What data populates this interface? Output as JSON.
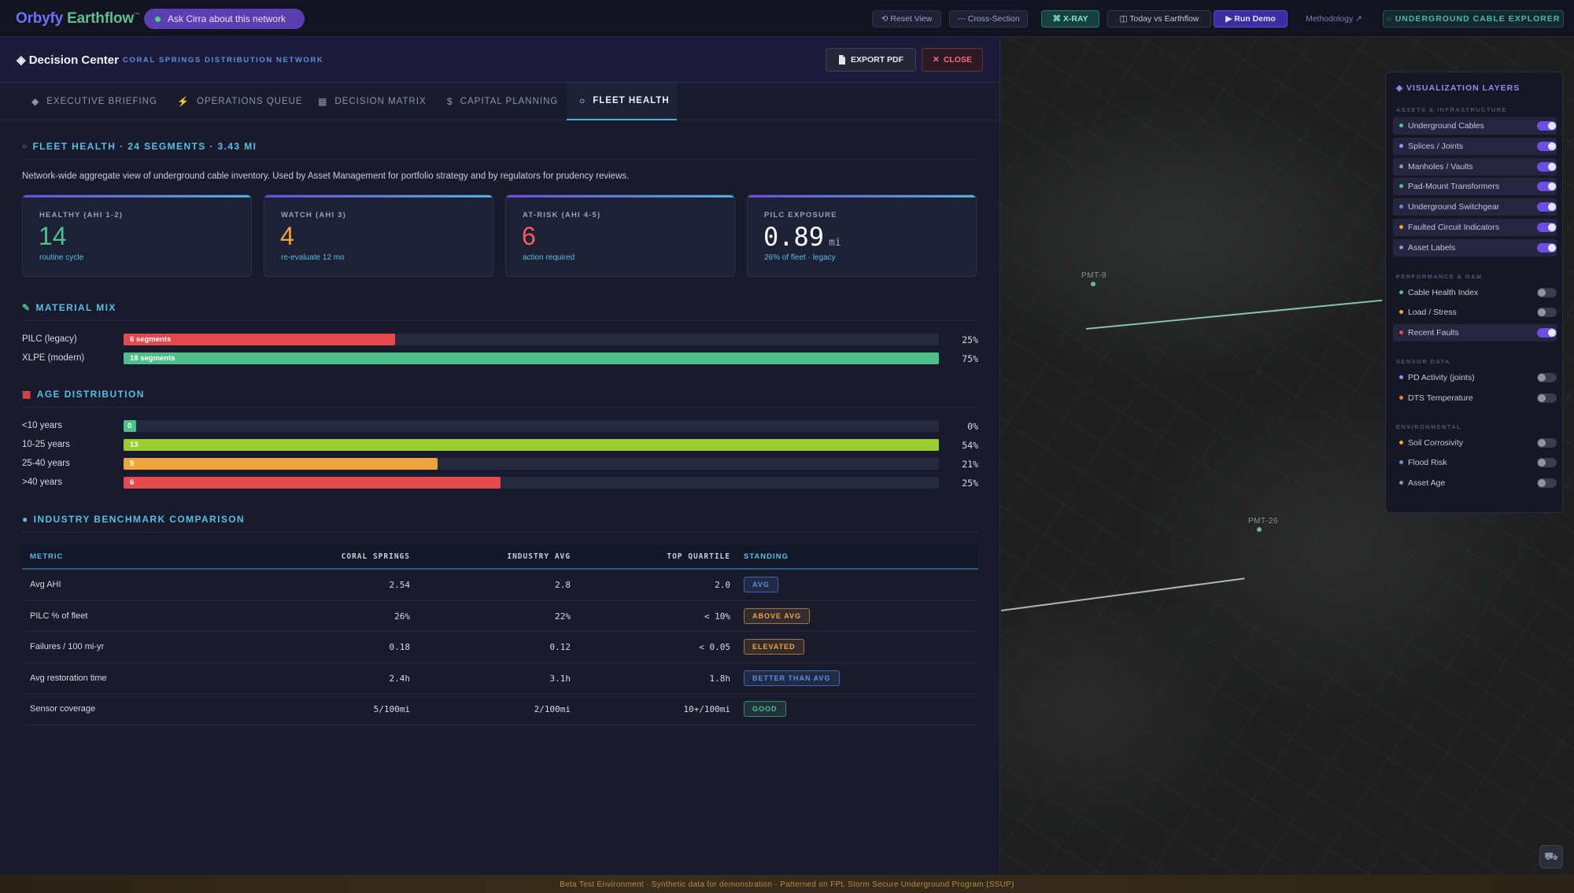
{
  "app": {
    "brand_part1": "Orbyfy",
    "brand_part2": "Earthflow",
    "brand_tm": "™",
    "ask_label": "Ask Cirra about this network"
  },
  "toolbar": {
    "reset_view": "⟲ Reset View",
    "cross_section": "⋯ Cross-Section",
    "xray": "⌘ X-RAY",
    "today_vs": "◫ Today vs Earthflow",
    "run_demo": "▶ Run Demo",
    "methodology": "Methodology ↗",
    "explorer": "◌ UNDERGROUND CABLE EXPLORER"
  },
  "panel": {
    "title_icon": "◈",
    "title": "Decision Center",
    "subtitle": "CORAL SPRINGS DISTRIBUTION NETWORK",
    "export_label": "EXPORT PDF",
    "close_label": "CLOSE"
  },
  "tabs": [
    {
      "label": "EXECUTIVE BRIEFING",
      "icon": "◆"
    },
    {
      "label": "OPERATIONS QUEUE",
      "icon": "⚡"
    },
    {
      "label": "DECISION MATRIX",
      "icon": "▦"
    },
    {
      "label": "CAPITAL PLANNING",
      "icon": "$"
    },
    {
      "label": "FLEET HEALTH",
      "icon": "○"
    }
  ],
  "fleet": {
    "section_title": "FLEET HEALTH · 24 SEGMENTS · 3.43 MI",
    "intro": "Network-wide aggregate view of underground cable inventory. Used by Asset Management for portfolio strategy and by regulators for prudency reviews.",
    "kpis": [
      {
        "label": "HEALTHY (AHI 1-2)",
        "value": "14",
        "unit": "",
        "sub": "routine cycle",
        "color": "#4fc08a"
      },
      {
        "label": "WATCH (AHI 3)",
        "value": "4",
        "unit": "",
        "sub": "re-evaluate 12 mo",
        "color": "#f0a53a"
      },
      {
        "label": "AT-RISK (AHI 4-5)",
        "value": "6",
        "unit": "",
        "sub": "action required",
        "color": "#ff5a5f"
      },
      {
        "label": "PILC EXPOSURE",
        "value": "0.89",
        "unit": "mi",
        "sub": "26% of fleet · legacy",
        "color": "#ffffff"
      }
    ]
  },
  "material": {
    "title": "MATERIAL MIX",
    "rows": [
      {
        "label": "PILC (legacy)",
        "bar_text": "6 segments",
        "fraction": 0.333,
        "pct": "25%",
        "color": "#e5484d"
      },
      {
        "label": "XLPE (modern)",
        "bar_text": "18 segments",
        "fraction": 1.0,
        "pct": "75%",
        "color": "#4fc08a"
      }
    ]
  },
  "age": {
    "title": "AGE DISTRIBUTION",
    "rows": [
      {
        "label": "<10 years",
        "bar_text": "0",
        "fraction": 0.015,
        "pct": "0%",
        "color": "#4fc08a"
      },
      {
        "label": "10-25 years",
        "bar_text": "13",
        "fraction": 1.0,
        "pct": "54%",
        "color": "#9acd32"
      },
      {
        "label": "25-40 years",
        "bar_text": "5",
        "fraction": 0.385,
        "pct": "21%",
        "color": "#f0a53a"
      },
      {
        "label": ">40 years",
        "bar_text": "6",
        "fraction": 0.462,
        "pct": "25%",
        "color": "#e5484d"
      }
    ]
  },
  "benchmark": {
    "title": "INDUSTRY BENCHMARK COMPARISON",
    "columns": [
      "METRIC",
      "CORAL SPRINGS",
      "INDUSTRY AVG",
      "TOP QUARTILE",
      "STANDING"
    ],
    "rows": [
      {
        "metric": "Avg AHI",
        "coral": "2.54",
        "industry": "2.8",
        "top": "2.0",
        "standing": "AVG",
        "badge_color": "#5b8fe0"
      },
      {
        "metric": "PILC % of fleet",
        "coral": "26%",
        "industry": "22%",
        "top": "< 10%",
        "standing": "ABOVE AVG",
        "badge_color": "#f0a53a"
      },
      {
        "metric": "Failures / 100 mi-yr",
        "coral": "0.18",
        "industry": "0.12",
        "top": "< 0.05",
        "standing": "ELEVATED",
        "badge_color": "#f0a53a"
      },
      {
        "metric": "Avg restoration time",
        "coral": "2.4h",
        "industry": "3.1h",
        "top": "1.8h",
        "standing": "BETTER THAN AVG",
        "badge_color": "#5b8fe0"
      },
      {
        "metric": "Sensor coverage",
        "coral": "5/100mi",
        "industry": "2/100mi",
        "top": "10+/100mi",
        "standing": "GOOD",
        "badge_color": "#4fc08a"
      }
    ]
  },
  "layers": {
    "title": "VISUALIZATION LAYERS",
    "groups": [
      {
        "title": "ASSETS & INFRASTRUCTURE",
        "items": [
          {
            "label": "Underground Cables",
            "on": true,
            "color": "#4fc08a"
          },
          {
            "label": "Splices / Joints",
            "on": true,
            "color": "#9a8ff0"
          },
          {
            "label": "Manholes / Vaults",
            "on": true,
            "color": "#8c93ab"
          },
          {
            "label": "Pad-Mount Transformers",
            "on": true,
            "color": "#4fc08a"
          },
          {
            "label": "Underground Switchgear",
            "on": true,
            "color": "#5b8fe0"
          },
          {
            "label": "Faulted Circuit Indicators",
            "on": true,
            "color": "#f0a53a"
          },
          {
            "label": "Asset Labels",
            "on": true,
            "color": "#8c93ab"
          }
        ]
      },
      {
        "title": "PERFORMANCE & O&M",
        "items": [
          {
            "label": "Cable Health Index",
            "on": false,
            "color": "#4fc08a"
          },
          {
            "label": "Load / Stress",
            "on": false,
            "color": "#f0a53a"
          },
          {
            "label": "Recent Faults",
            "on": true,
            "color": "#e5484d"
          }
        ]
      },
      {
        "title": "SENSOR DATA",
        "items": [
          {
            "label": "PD Activity (joints)",
            "on": false,
            "color": "#9a8ff0"
          },
          {
            "label": "DTS Temperature",
            "on": false,
            "color": "#f07a3a"
          }
        ]
      },
      {
        "title": "ENVIRONMENTAL",
        "items": [
          {
            "label": "Soil Corrosivity",
            "on": false,
            "color": "#f0a53a"
          },
          {
            "label": "Flood Risk",
            "on": false,
            "color": "#5b8fe0"
          },
          {
            "label": "Asset Age",
            "on": false,
            "color": "#8c93ab"
          }
        ]
      }
    ]
  },
  "map": {
    "label_1": "PMT-9",
    "label_2": "PMT-26",
    "footer": "Beta Test Environment · Synthetic data for demonstration · Patterned on FPL Storm Secure Underground Program (SSUP)",
    "fab_icon": "⛟"
  }
}
